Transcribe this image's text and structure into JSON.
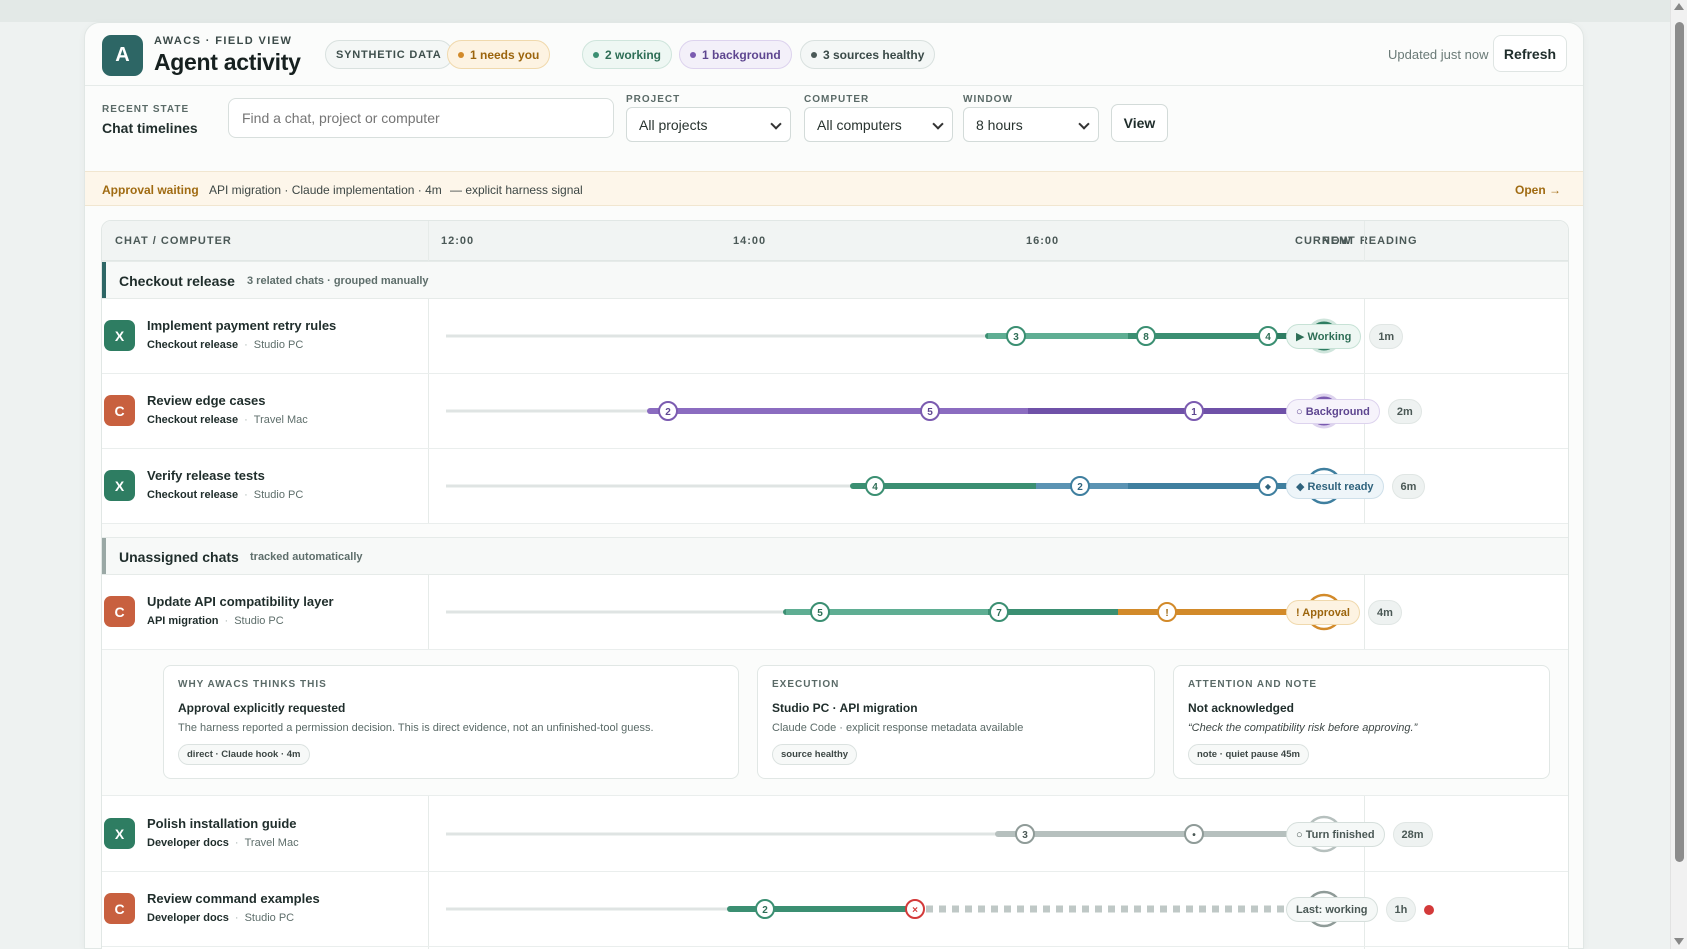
{
  "header": {
    "logo_letter": "A",
    "eyebrow": "AWACS · FIELD VIEW",
    "title": "Agent activity",
    "pills": {
      "synthetic": "SYNTHETIC DATA",
      "needs": "1 needs you",
      "working": "2 working",
      "background": "1 background",
      "sources": "3 sources healthy"
    },
    "updated": "Updated just now",
    "refresh_label": "Refresh"
  },
  "filters": {
    "recent_state_label": "RECENT STATE",
    "recent_state_value": "Chat timelines",
    "search_placeholder": "Find a chat, project or computer",
    "project_label": "PROJECT",
    "project_value": "All projects",
    "computer_label": "COMPUTER",
    "computer_value": "All computers",
    "window_label": "WINDOW",
    "window_value": "8 hours",
    "view_label": "View"
  },
  "approval_bar": {
    "status": "Approval waiting",
    "detail": "API migration · Claude implementation · 4m",
    "signal": "— explicit harness signal",
    "open_label": "Open →"
  },
  "table": {
    "col_chat": "CHAT / COMPUTER",
    "ticks": [
      "12:00",
      "14:00",
      "16:00",
      "NOW"
    ],
    "col_reading": "CURRENT READING"
  },
  "groups": [
    {
      "name": "Checkout release",
      "sub": "3 related chats · grouped manually",
      "rows": [
        {
          "avatar": "X",
          "title": "Implement payment retry rules",
          "project": "Checkout release",
          "computer": "Studio PC",
          "badge": "▶ Working",
          "age": "1m"
        },
        {
          "avatar": "C",
          "title": "Review edge cases",
          "project": "Checkout release",
          "computer": "Travel Mac",
          "badge": "○ Background",
          "age": "2m"
        },
        {
          "avatar": "X",
          "title": "Verify release tests",
          "project": "Checkout release",
          "computer": "Studio PC",
          "badge": "◆ Result ready",
          "age": "6m"
        }
      ]
    },
    {
      "name": "Unassigned chats",
      "sub": "tracked automatically",
      "rows": [
        {
          "avatar": "C",
          "title": "Update API compatibility layer",
          "project": "API migration",
          "computer": "Studio PC",
          "badge": "! Approval",
          "age": "4m"
        },
        {
          "avatar": "X",
          "title": "Polish installation guide",
          "project": "Developer docs",
          "computer": "Travel Mac",
          "badge": "○ Turn finished",
          "age": "28m"
        },
        {
          "avatar": "C",
          "title": "Review command examples",
          "project": "Developer docs",
          "computer": "Studio PC",
          "badge": "Last: working",
          "age": "1h"
        }
      ]
    }
  ],
  "detail": {
    "why": {
      "heading": "WHY AWACS THINKS THIS",
      "title": "Approval explicitly requested",
      "desc": "The harness reported a permission decision. This is direct evidence, not an unfinished-tool guess.",
      "chip": "direct · Claude hook · 4m"
    },
    "exec": {
      "heading": "EXECUTION",
      "title": "Studio PC · API migration",
      "desc": "Claude Code · explicit response metadata available",
      "chip": "source healthy"
    },
    "attention": {
      "heading": "ATTENTION AND NOTE",
      "title": "Not acknowledged",
      "desc": "“Check the compatibility risk before approving.”",
      "chip": "note · quiet pause 45m"
    }
  },
  "timelines": {
    "row1": {
      "markers": [
        "3",
        "8",
        "4"
      ]
    },
    "row2": {
      "markers": [
        "2",
        "5",
        "1"
      ]
    },
    "row3": {
      "markers": [
        "4",
        "2",
        "◆"
      ],
      "end": "◆"
    },
    "row4": {
      "markers": [
        "5",
        "7",
        "!"
      ],
      "end": "!"
    },
    "row5": {
      "markers": [
        "3",
        "•"
      ],
      "end": "○"
    },
    "row6": {
      "markers": [
        "2",
        "×"
      ],
      "end": "?"
    }
  },
  "colors": {
    "accent": "#2d6665",
    "working": "#3b8f72",
    "background": "#7b5bb0",
    "result": "#3f7f9f",
    "approval": "#d28a2a",
    "finished": "#b6c0be",
    "stale": "#d33a3a"
  }
}
